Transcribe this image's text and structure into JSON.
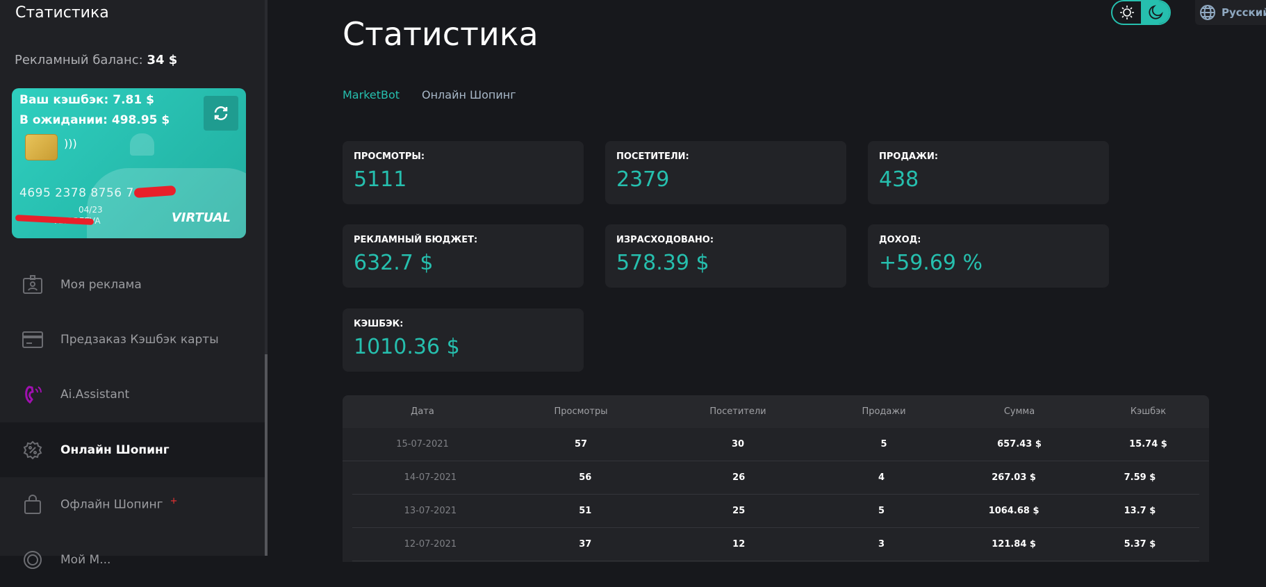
{
  "sidebar": {
    "title": "Статистика",
    "balance_label": "Рекламный баланс:",
    "balance_value": "34 $",
    "card": {
      "cashback": "Ваш кэшбэк: 7.81 $",
      "pending": "В ожидании: 498.95 $",
      "number": "4695 2378 8756 7",
      "expiry": "04/23",
      "holder": "ANDREEVA",
      "type": "VIRTUAL"
    },
    "items": [
      {
        "label": "Моя реклама",
        "icon": "id-badge-icon"
      },
      {
        "label": "Предзаказ Кэшбэк карты",
        "icon": "credit-card-icon"
      },
      {
        "label": "Ai.Assistant",
        "icon": "phone-ringing-icon",
        "color": "#a010b0"
      },
      {
        "label": "Онлайн Шопинг",
        "icon": "discount-badge-icon",
        "active": true
      },
      {
        "label": "Офлайн Шопинг",
        "icon": "shopping-bag-icon",
        "badge": "+"
      },
      {
        "label": "Мой М...",
        "icon": "target-icon"
      }
    ]
  },
  "header": {
    "theme": "dark",
    "language": "Русский"
  },
  "main": {
    "title": "Статистика",
    "tabs": [
      {
        "label": "MarketBot",
        "active": true
      },
      {
        "label": "Онлайн Шопинг"
      }
    ],
    "stats": [
      {
        "label": "ПРОСМОТРЫ:",
        "value": "5111"
      },
      {
        "label": "ПОСЕТИТЕЛИ:",
        "value": "2379"
      },
      {
        "label": "ПРОДАЖИ:",
        "value": "438"
      },
      {
        "label": "РЕКЛАМНЫЙ БЮДЖЕТ:",
        "value": "632.7 $"
      },
      {
        "label": "ИЗРАСХОДОВАНО:",
        "value": "578.39 $"
      },
      {
        "label": "ДОХОД:",
        "value": "+59.69 %"
      },
      {
        "label": "КЭШБЭК:",
        "value": "1010.36 $"
      }
    ],
    "table": {
      "columns": [
        "Дата",
        "Просмотры",
        "Посетители",
        "Продажи",
        "Сумма",
        "Кэшбэк"
      ],
      "rows": [
        [
          "15-07-2021",
          "57",
          "30",
          "5",
          "657.43 $",
          "15.74 $"
        ],
        [
          "14-07-2021",
          "56",
          "26",
          "4",
          "267.03 $",
          "7.59 $"
        ],
        [
          "13-07-2021",
          "51",
          "25",
          "5",
          "1064.68 $",
          "13.7 $"
        ],
        [
          "12-07-2021",
          "37",
          "12",
          "3",
          "121.84 $",
          "5.37 $"
        ]
      ]
    }
  },
  "colors": {
    "accent": "#26bfae",
    "background": "#17181c",
    "sidebar": "#202125",
    "panel": "#222327"
  }
}
